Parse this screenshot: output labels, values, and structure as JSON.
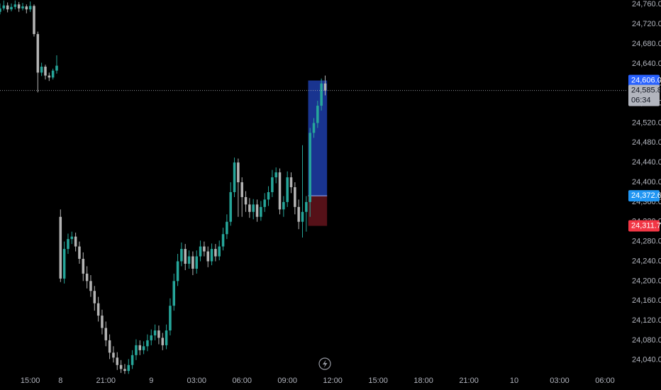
{
  "chart_data": {
    "type": "candlestick",
    "x": [
      0,
      1,
      2,
      3,
      4,
      5,
      6,
      7,
      8,
      9,
      10,
      11,
      12,
      13,
      14,
      15,
      16,
      17,
      18,
      19,
      20,
      21,
      22,
      23,
      24,
      25,
      26,
      27,
      28,
      29,
      30,
      31,
      32,
      33,
      34,
      35,
      36,
      37,
      38,
      39,
      40,
      41,
      42,
      43,
      44,
      45,
      46,
      47,
      48,
      49,
      50,
      51,
      52,
      53,
      54,
      55,
      56,
      57,
      58,
      59,
      60,
      61,
      62,
      63,
      64,
      65,
      66,
      67,
      68,
      69,
      70,
      71,
      72,
      73,
      74,
      75,
      76,
      77,
      78,
      79,
      80,
      81,
      82,
      83,
      84,
      85,
      86
    ],
    "open": [
      24745,
      24752,
      24758,
      24750,
      24755,
      24760,
      24752,
      24756,
      24750,
      24757,
      24700,
      24622,
      24634,
      24616,
      24612,
      24626,
      24330,
      24205,
      24265,
      24285,
      24290,
      24270,
      24245,
      24215,
      24200,
      24180,
      24155,
      24130,
      24105,
      24080,
      24055,
      24045,
      24030,
      24022,
      24018,
      24030,
      24050,
      24070,
      24060,
      24068,
      24080,
      24090,
      24100,
      24085,
      24070,
      24100,
      24150,
      24200,
      24240,
      24265,
      24235,
      24250,
      24225,
      24250,
      24270,
      24260,
      24240,
      24265,
      24250,
      24270,
      24295,
      24320,
      24380,
      24440,
      24400,
      24370,
      24355,
      24340,
      24355,
      24330,
      24350,
      24365,
      24380,
      24410,
      24420,
      24345,
      24360,
      24410,
      24390,
      24350,
      24320,
      24340,
      24360,
      24500,
      24520,
      24555,
      24600
    ],
    "high": [
      24762,
      24768,
      24764,
      24762,
      24768,
      24765,
      24763,
      24760,
      24766,
      24760,
      24705,
      24642,
      24638,
      24622,
      24630,
      24657,
      24345,
      24280,
      24296,
      24300,
      24298,
      24280,
      24258,
      24230,
      24212,
      24190,
      24168,
      24142,
      24118,
      24092,
      24068,
      24056,
      24040,
      24032,
      24042,
      24060,
      24082,
      24080,
      24078,
      24092,
      24102,
      24112,
      24110,
      24095,
      24112,
      24165,
      24215,
      24255,
      24278,
      24275,
      24262,
      24260,
      24262,
      24282,
      24280,
      24270,
      24276,
      24275,
      24282,
      24308,
      24335,
      24400,
      24450,
      24448,
      24410,
      24382,
      24368,
      24366,
      24365,
      24362,
      24378,
      24392,
      24425,
      24430,
      24428,
      24372,
      24422,
      24420,
      24400,
      24365,
      24475,
      24372,
      24510,
      24530,
      24565,
      24610,
      24616
    ],
    "low": [
      24740,
      24748,
      24744,
      24746,
      24750,
      24745,
      24748,
      24742,
      24745,
      24695,
      24582,
      24615,
      24608,
      24605,
      24608,
      24620,
      24198,
      24195,
      24255,
      24275,
      24260,
      24235,
      24200,
      24185,
      24168,
      24140,
      24118,
      24092,
      24068,
      24042,
      24035,
      24020,
      24014,
      24012,
      24012,
      24022,
      24040,
      24050,
      24052,
      24058,
      24070,
      24080,
      24072,
      24060,
      24062,
      24090,
      24140,
      24190,
      24230,
      24222,
      24225,
      24212,
      24215,
      24240,
      24250,
      24228,
      24232,
      24240,
      24242,
      24262,
      24285,
      24312,
      24370,
      24330,
      24330,
      24340,
      24328,
      24325,
      24320,
      24322,
      24340,
      24352,
      24370,
      24398,
      24335,
      24330,
      24350,
      24378,
      24335,
      24305,
      24288,
      24300,
      24330,
      24490,
      24510,
      24545,
      24576
    ],
    "close": [
      24752,
      24758,
      24750,
      24755,
      24760,
      24752,
      24756,
      24750,
      24757,
      24700,
      24622,
      24634,
      24616,
      24612,
      24626,
      24636,
      24205,
      24265,
      24285,
      24290,
      24270,
      24245,
      24215,
      24200,
      24180,
      24155,
      24130,
      24105,
      24080,
      24055,
      24045,
      24030,
      24022,
      24018,
      24030,
      24050,
      24070,
      24060,
      24068,
      24080,
      24090,
      24100,
      24085,
      24070,
      24100,
      24150,
      24200,
      24240,
      24265,
      24235,
      24250,
      24225,
      24250,
      24270,
      24260,
      24240,
      24265,
      24250,
      24270,
      24295,
      24320,
      24380,
      24440,
      24400,
      24370,
      24355,
      24340,
      24355,
      24330,
      24350,
      24365,
      24380,
      24410,
      24420,
      24345,
      24360,
      24410,
      24390,
      24350,
      24320,
      24340,
      24360,
      24500,
      24520,
      24555,
      24600,
      24585.8
    ],
    "up_color": "#26a69a",
    "down_color": "#b4b4b4",
    "xlim": [
      0,
      166
    ],
    "xticks": [
      {
        "value": 8,
        "label": "15:00"
      },
      {
        "value": 16,
        "label": "8"
      },
      {
        "value": 28,
        "label": "21:00"
      },
      {
        "value": 40,
        "label": "9"
      },
      {
        "value": 52,
        "label": "03:00"
      },
      {
        "value": 64,
        "label": "06:00"
      },
      {
        "value": 76,
        "label": "09:00"
      },
      {
        "value": 88,
        "label": "12:00"
      },
      {
        "value": 100,
        "label": "15:00"
      },
      {
        "value": 112,
        "label": "18:00"
      },
      {
        "value": 124,
        "label": "21:00"
      },
      {
        "value": 136,
        "label": "10"
      },
      {
        "value": 148,
        "label": "03:00"
      },
      {
        "value": 160,
        "label": "06:00"
      }
    ],
    "ylim": [
      24011,
      24769
    ],
    "yticks": [
      {
        "value": 24760,
        "label": "24,760.0"
      },
      {
        "value": 24720,
        "label": "24,720.0"
      },
      {
        "value": 24680,
        "label": "24,680.0"
      },
      {
        "value": 24640,
        "label": "24,640.0"
      },
      {
        "value": 24600,
        "label": "24,600.0"
      },
      {
        "value": 24560,
        "label": "24,560.0"
      },
      {
        "value": 24520,
        "label": "24,520.0"
      },
      {
        "value": 24480,
        "label": "24,480.0"
      },
      {
        "value": 24440,
        "label": "24,440.0"
      },
      {
        "value": 24400,
        "label": "24,400.0"
      },
      {
        "value": 24360,
        "label": "24,360.0"
      },
      {
        "value": 24320,
        "label": "24,320.0"
      },
      {
        "value": 24280,
        "label": "24,280.0"
      },
      {
        "value": 24240,
        "label": "24,240.0"
      },
      {
        "value": 24200,
        "label": "24,200.0"
      },
      {
        "value": 24160,
        "label": "24,160.0"
      },
      {
        "value": 24120,
        "label": "24,120.0"
      },
      {
        "value": 24080,
        "label": "24,080.0"
      },
      {
        "value": 24040,
        "label": "24,040.0"
      }
    ],
    "grid": false,
    "last_price": {
      "value": 24585.8,
      "label": "24,585.8",
      "color": "#b2b5be"
    },
    "countdown": "06:34",
    "position": {
      "x_range": [
        82,
        86
      ],
      "target": {
        "value": 24606.0,
        "label": "24,606.0",
        "color": "#2962ff"
      },
      "entry": {
        "value": 24372.6,
        "label": "24,372.6",
        "color": "#2196f3"
      },
      "stop": {
        "value": 24311.7,
        "label": "24,311.7",
        "color": "#f23645"
      },
      "profit_fill": "#1c3aa0",
      "loss_fill": "#5a1219"
    }
  }
}
